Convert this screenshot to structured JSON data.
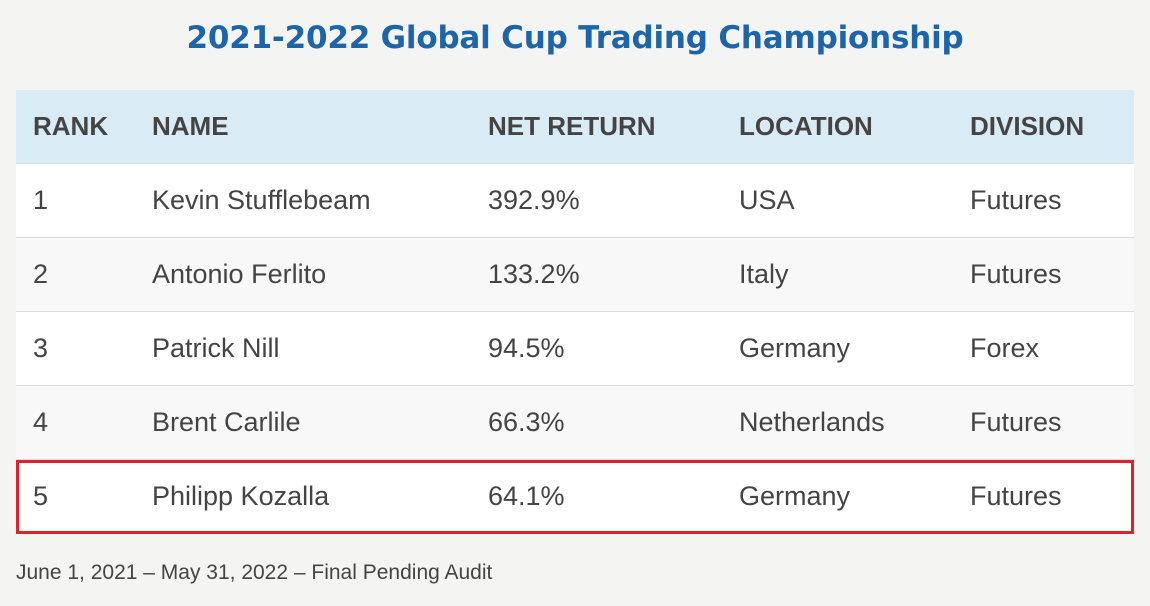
{
  "title": "2021-2022 Global Cup Trading Championship",
  "table": {
    "headers": {
      "rank": "RANK",
      "name": "NAME",
      "net_return": "NET RETURN",
      "location": "LOCATION",
      "division": "DIVISION"
    },
    "rows": [
      {
        "rank": "1",
        "name": "Kevin Stufflebeam",
        "net_return": "392.9%",
        "location": "USA",
        "division": "Futures"
      },
      {
        "rank": "2",
        "name": "Antonio Ferlito",
        "net_return": "133.2%",
        "location": "Italy",
        "division": "Futures"
      },
      {
        "rank": "3",
        "name": "Patrick Nill",
        "net_return": "94.5%",
        "location": "Germany",
        "division": "Forex"
      },
      {
        "rank": "4",
        "name": "Brent Carlile",
        "net_return": "66.3%",
        "location": "Netherlands",
        "division": "Futures"
      },
      {
        "rank": "5",
        "name": "Philipp Kozalla",
        "net_return": "64.1%",
        "location": "Germany",
        "division": "Futures"
      }
    ],
    "highlight_color": "#e0202a"
  },
  "footnote": "June 1, 2021 – May 31, 2022 – Final Pending Audit",
  "colors": {
    "title": "#1e64a8",
    "header_bg": "#d9ebf5",
    "page_bg": "#f4f4f3"
  }
}
